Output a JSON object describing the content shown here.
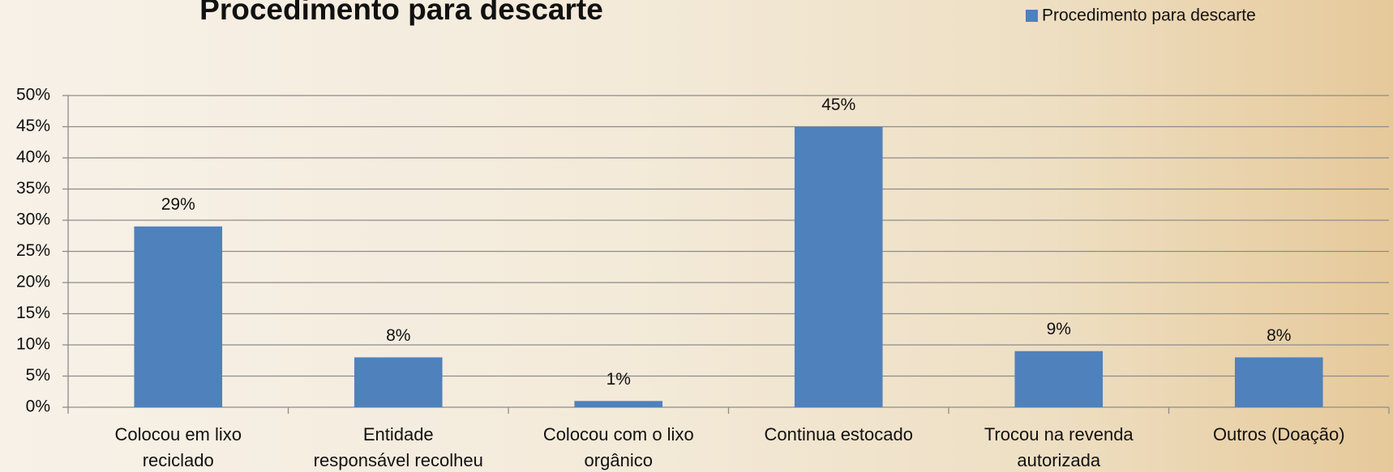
{
  "chart_data": {
    "type": "bar",
    "title": "Procedimento para descarte",
    "categories": [
      "Colocou em lixo reciclado",
      "Entidade responsável recolheu",
      "Colocou com o lixo orgânico",
      "Continua estocado",
      "Trocou na revenda autorizada",
      "Outros (Doação)"
    ],
    "series": [
      {
        "name": "Procedimento para descarte",
        "color": "#4f81bd",
        "values": [
          29,
          8,
          1,
          45,
          9,
          8
        ],
        "value_labels": [
          "29%",
          "8%",
          "1%",
          "45%",
          "9%",
          "8%"
        ]
      }
    ],
    "ylim": [
      0,
      50
    ],
    "yticks": [
      {
        "value": 0,
        "label": "0%"
      },
      {
        "value": 5,
        "label": "5%"
      },
      {
        "value": 10,
        "label": "10%"
      },
      {
        "value": 15,
        "label": "15%"
      },
      {
        "value": 20,
        "label": "20%"
      },
      {
        "value": 25,
        "label": "25%"
      },
      {
        "value": 30,
        "label": "30%"
      },
      {
        "value": 35,
        "label": "35%"
      },
      {
        "value": 40,
        "label": "40%"
      },
      {
        "value": 45,
        "label": "45%"
      },
      {
        "value": 50,
        "label": "50%"
      }
    ],
    "grid": true,
    "legend": "top-right"
  }
}
